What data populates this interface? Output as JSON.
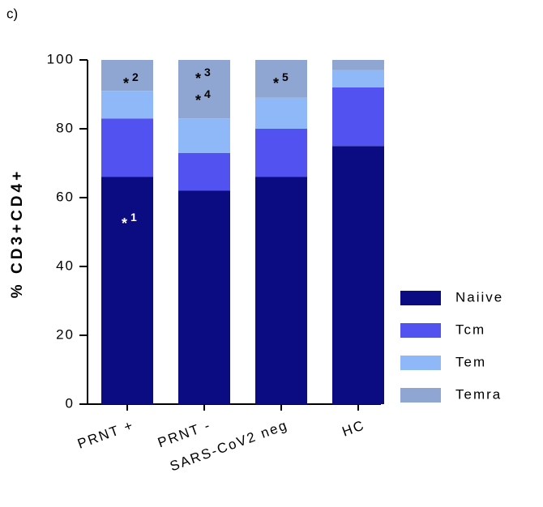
{
  "chart_data": {
    "type": "stacked_bar",
    "panel_label": "c)",
    "ylabel": "% CD3+CD4+",
    "categories": [
      "PRNT +",
      "PRNT -",
      "SARS-CoV2 neg",
      "HC"
    ],
    "series": [
      {
        "name": "Naiive",
        "color": "#0b0b82",
        "values": [
          66,
          62,
          66,
          75
        ]
      },
      {
        "name": "Tcm",
        "color": "#5252f0",
        "values": [
          17,
          11,
          14,
          17
        ]
      },
      {
        "name": "Tem",
        "color": "#8fb8f8",
        "values": [
          8,
          10,
          9,
          5
        ]
      },
      {
        "name": "Temra",
        "color": "#8fa6d2",
        "values": [
          9,
          17,
          11,
          3
        ]
      }
    ],
    "ylim": [
      0,
      100
    ],
    "yticks": [
      0,
      20,
      40,
      60,
      80,
      100
    ],
    "annotations": [
      {
        "mark": "*",
        "label": "1"
      },
      {
        "mark": "*",
        "label": "2"
      },
      {
        "mark": "*",
        "label": "3"
      },
      {
        "mark": "*",
        "label": "4"
      },
      {
        "mark": "*",
        "label": "5"
      }
    ],
    "legend": "right"
  }
}
